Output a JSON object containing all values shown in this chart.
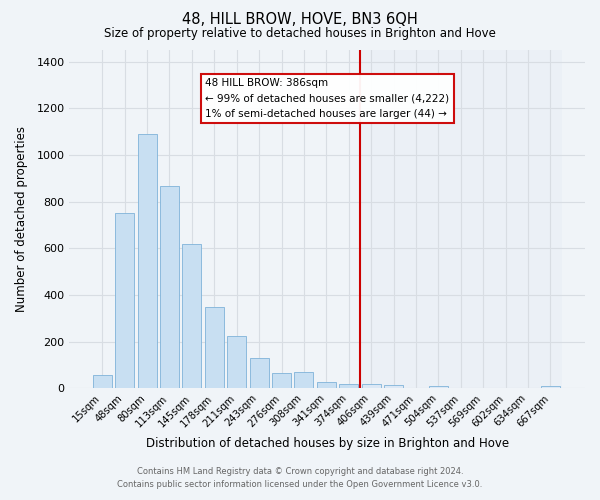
{
  "title": "48, HILL BROW, HOVE, BN3 6QH",
  "subtitle": "Size of property relative to detached houses in Brighton and Hove",
  "xlabel": "Distribution of detached houses by size in Brighton and Hove",
  "ylabel": "Number of detached properties",
  "bar_labels": [
    "15sqm",
    "48sqm",
    "80sqm",
    "113sqm",
    "145sqm",
    "178sqm",
    "211sqm",
    "243sqm",
    "276sqm",
    "308sqm",
    "341sqm",
    "374sqm",
    "406sqm",
    "439sqm",
    "471sqm",
    "504sqm",
    "537sqm",
    "569sqm",
    "602sqm",
    "634sqm",
    "667sqm"
  ],
  "bar_values": [
    55,
    750,
    1090,
    865,
    620,
    350,
    225,
    130,
    65,
    70,
    25,
    20,
    20,
    15,
    0,
    10,
    0,
    0,
    0,
    0,
    10
  ],
  "bar_color": "#c8dff2",
  "bar_edge_color": "#7fb3d9",
  "bar_color_right": "#dce8f5",
  "vline_index": 11.5,
  "vline_color": "#cc0000",
  "ylim": [
    0,
    1450
  ],
  "yticks": [
    0,
    200,
    400,
    600,
    800,
    1000,
    1200,
    1400
  ],
  "annotation_title": "48 HILL BROW: 386sqm",
  "annotation_line1": "← 99% of detached houses are smaller (4,222)",
  "annotation_line2": "1% of semi-detached houses are larger (44) →",
  "footer1": "Contains HM Land Registry data © Crown copyright and database right 2024.",
  "footer2": "Contains public sector information licensed under the Open Government Licence v3.0.",
  "bg_color": "#f0f4f8",
  "grid_color": "#d8dde3",
  "right_bg_color": "#e8eef5"
}
